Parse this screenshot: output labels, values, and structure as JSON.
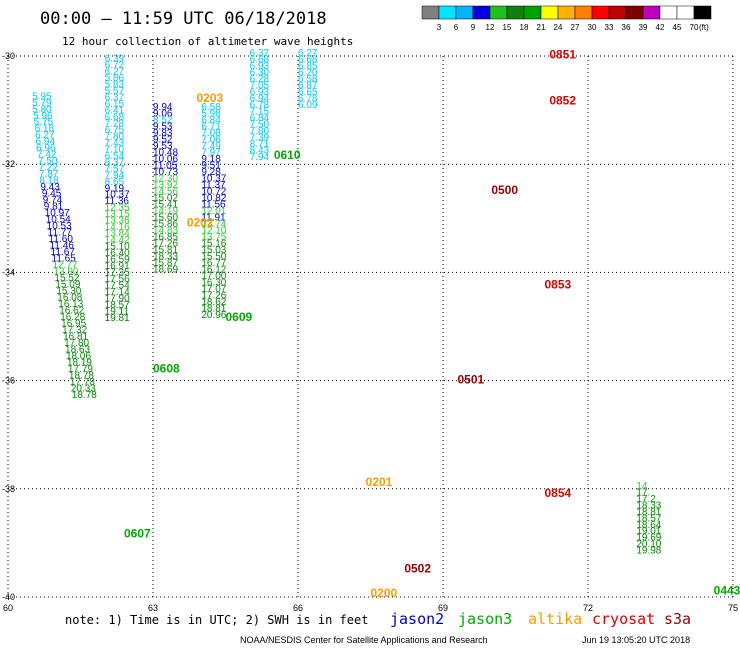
{
  "title": "00:00 – 11:59 UTC 06/18/2018",
  "subtitle": "12 hour collection of altimeter wave heights",
  "colorbar": {
    "labels": [
      "3",
      "6",
      "9",
      "12",
      "15",
      "18",
      "21",
      "24",
      "27",
      "30",
      "33",
      "36",
      "39",
      "42",
      "45",
      "70"
    ],
    "unit": "(ft)",
    "colors": [
      "#808080",
      "#00e5ff",
      "#00b4ff",
      "#0000e0",
      "#20c020",
      "#108010",
      "#00a000",
      "#ffff00",
      "#ffb000",
      "#ff8000",
      "#ff0000",
      "#c00000",
      "#800000",
      "#c000c0",
      "#ffffff",
      "#ffffff",
      "#000000"
    ]
  },
  "note": "note: 1) Time is in UTC; 2) SWH is in feet",
  "legend": [
    {
      "name": "jason2",
      "color": "#0000cc"
    },
    {
      "name": "jason3",
      "color": "#00aa00"
    },
    {
      "name": "altika",
      "color": "#ff9900"
    },
    {
      "name": "cryosat",
      "color": "#dd0000"
    },
    {
      "name": "s3a",
      "color": "#990000"
    }
  ],
  "footer_center": "NOAA/NESDIS Center for Satellite Applications and Research",
  "footer_right": "Jun 19 13:05:20 UTC 2018",
  "chart_data": {
    "type": "scatter",
    "xlim": [
      60,
      75
    ],
    "ylim": [
      -40,
      -30
    ],
    "xticks": [
      "60",
      "63",
      "66",
      "69",
      "72",
      "75"
    ],
    "yticks": [
      "-30",
      "-32",
      "-34",
      "-36",
      "-38",
      "-40"
    ],
    "grid": true,
    "points": [
      {
        "x": 60.5,
        "y": -30.8,
        "v": "5.95"
      },
      {
        "x": 60.5,
        "y": -30.92,
        "v": "5.79"
      },
      {
        "x": 60.5,
        "y": -31.04,
        "v": "5.80"
      },
      {
        "x": 60.52,
        "y": -31.16,
        "v": "5.96"
      },
      {
        "x": 60.53,
        "y": -31.28,
        "v": "5.75"
      },
      {
        "x": 60.55,
        "y": -31.4,
        "v": "6.18"
      },
      {
        "x": 60.56,
        "y": -31.52,
        "v": "6.27"
      },
      {
        "x": 60.57,
        "y": -31.64,
        "v": "6.94"
      },
      {
        "x": 60.58,
        "y": -31.76,
        "v": "6.96"
      },
      {
        "x": 60.6,
        "y": -31.88,
        "v": "7.42"
      },
      {
        "x": 60.62,
        "y": -32.0,
        "v": "7.50"
      },
      {
        "x": 60.63,
        "y": -32.12,
        "v": "7.22"
      },
      {
        "x": 60.64,
        "y": -32.24,
        "v": "7.87"
      },
      {
        "x": 60.65,
        "y": -32.36,
        "v": "8.18"
      },
      {
        "x": 60.67,
        "y": -32.48,
        "v": "9.43"
      },
      {
        "x": 60.7,
        "y": -32.6,
        "v": "9.45"
      },
      {
        "x": 60.72,
        "y": -32.72,
        "v": "9.74"
      },
      {
        "x": 60.74,
        "y": -32.84,
        "v": "9.81"
      },
      {
        "x": 60.76,
        "y": -32.96,
        "v": "10.97"
      },
      {
        "x": 60.78,
        "y": -33.08,
        "v": "10.54"
      },
      {
        "x": 60.8,
        "y": -33.2,
        "v": "10.53"
      },
      {
        "x": 60.82,
        "y": -33.32,
        "v": "11.77"
      },
      {
        "x": 60.84,
        "y": -33.44,
        "v": "11.60"
      },
      {
        "x": 60.86,
        "y": -33.56,
        "v": "11.46"
      },
      {
        "x": 60.88,
        "y": -33.68,
        "v": "11.67"
      },
      {
        "x": 60.9,
        "y": -33.8,
        "v": "11.65"
      },
      {
        "x": 60.92,
        "y": -33.92,
        "v": "12.77"
      },
      {
        "x": 60.94,
        "y": -34.04,
        "v": "13.90"
      },
      {
        "x": 60.96,
        "y": -34.16,
        "v": "15.52"
      },
      {
        "x": 60.98,
        "y": -34.28,
        "v": "15.09"
      },
      {
        "x": 61.0,
        "y": -34.4,
        "v": "15.30"
      },
      {
        "x": 61.02,
        "y": -34.52,
        "v": "16.08"
      },
      {
        "x": 61.04,
        "y": -34.64,
        "v": "16.13"
      },
      {
        "x": 61.06,
        "y": -34.76,
        "v": "16.62"
      },
      {
        "x": 61.08,
        "y": -34.88,
        "v": "16.28"
      },
      {
        "x": 61.1,
        "y": -35.0,
        "v": "16.95"
      },
      {
        "x": 61.12,
        "y": -35.12,
        "v": "17.32"
      },
      {
        "x": 61.14,
        "y": -35.24,
        "v": "16.81"
      },
      {
        "x": 61.16,
        "y": -35.36,
        "v": "17.80"
      },
      {
        "x": 61.18,
        "y": -35.48,
        "v": "18.63"
      },
      {
        "x": 61.2,
        "y": -35.6,
        "v": "18.06"
      },
      {
        "x": 61.22,
        "y": -35.72,
        "v": "18.19"
      },
      {
        "x": 61.24,
        "y": -35.84,
        "v": "17.79"
      },
      {
        "x": 61.26,
        "y": -35.96,
        "v": "18.78"
      },
      {
        "x": 61.28,
        "y": -36.08,
        "v": "17.78"
      },
      {
        "x": 61.3,
        "y": -36.2,
        "v": "20.33"
      },
      {
        "x": 61.32,
        "y": -36.32,
        "v": "18.78"
      },
      {
        "x": 62.0,
        "y": -30.1,
        "v": "6.39"
      },
      {
        "x": 62.0,
        "y": -30.22,
        "v": "6.72"
      },
      {
        "x": 62.0,
        "y": -30.34,
        "v": "6.27"
      },
      {
        "x": 62.0,
        "y": -30.46,
        "v": "5.86"
      },
      {
        "x": 62.0,
        "y": -30.58,
        "v": "5.83"
      },
      {
        "x": 62.0,
        "y": -30.7,
        "v": "5.57"
      },
      {
        "x": 62.0,
        "y": -30.82,
        "v": "6.37"
      },
      {
        "x": 62.0,
        "y": -30.94,
        "v": "6.15"
      },
      {
        "x": 62.0,
        "y": -31.06,
        "v": "6.41"
      },
      {
        "x": 62.0,
        "y": -31.18,
        "v": "6.68"
      },
      {
        "x": 62.0,
        "y": -31.3,
        "v": "7.28"
      },
      {
        "x": 62.0,
        "y": -31.42,
        "v": "6.75"
      },
      {
        "x": 62.0,
        "y": -31.54,
        "v": "7.80"
      },
      {
        "x": 62.0,
        "y": -31.66,
        "v": "7.43"
      },
      {
        "x": 62.0,
        "y": -31.78,
        "v": "7.10"
      },
      {
        "x": 62.0,
        "y": -31.9,
        "v": "6.54"
      },
      {
        "x": 62.0,
        "y": -32.02,
        "v": "8.37"
      },
      {
        "x": 62.0,
        "y": -32.14,
        "v": "7.57"
      },
      {
        "x": 62.0,
        "y": -32.26,
        "v": "7.94"
      },
      {
        "x": 62.0,
        "y": -32.38,
        "v": "8.65"
      },
      {
        "x": 62.0,
        "y": -32.5,
        "v": "9.19"
      },
      {
        "x": 62.0,
        "y": -32.62,
        "v": "10.37"
      },
      {
        "x": 62.0,
        "y": -32.74,
        "v": "11.36"
      },
      {
        "x": 62.0,
        "y": -32.86,
        "v": "12.35"
      },
      {
        "x": 62.0,
        "y": -32.98,
        "v": "13.15"
      },
      {
        "x": 62.0,
        "y": -33.1,
        "v": "13.36"
      },
      {
        "x": 62.0,
        "y": -33.22,
        "v": "14.16"
      },
      {
        "x": 62.0,
        "y": -33.34,
        "v": "13.84"
      },
      {
        "x": 62.0,
        "y": -33.46,
        "v": "14.42"
      },
      {
        "x": 62.0,
        "y": -33.58,
        "v": "15.10"
      },
      {
        "x": 62.0,
        "y": -33.7,
        "v": "16.40"
      },
      {
        "x": 62.0,
        "y": -33.82,
        "v": "16.59"
      },
      {
        "x": 62.0,
        "y": -33.94,
        "v": "16.91"
      },
      {
        "x": 62.0,
        "y": -34.06,
        "v": "17.35"
      },
      {
        "x": 62.0,
        "y": -34.18,
        "v": "17.56"
      },
      {
        "x": 62.0,
        "y": -34.3,
        "v": "17.54"
      },
      {
        "x": 62.0,
        "y": -34.42,
        "v": "17.14"
      },
      {
        "x": 62.0,
        "y": -34.54,
        "v": "17.90"
      },
      {
        "x": 62.0,
        "y": -34.66,
        "v": "18.57"
      },
      {
        "x": 62.0,
        "y": -34.78,
        "v": "19.11"
      },
      {
        "x": 62.0,
        "y": -34.9,
        "v": "19.81"
      },
      {
        "x": 63.0,
        "y": -31.0,
        "v": "9.94"
      },
      {
        "x": 63.0,
        "y": -31.12,
        "v": "9.06"
      },
      {
        "x": 63.0,
        "y": -31.24,
        "v": "8.52"
      },
      {
        "x": 63.0,
        "y": -31.36,
        "v": "9.53"
      },
      {
        "x": 63.0,
        "y": -31.48,
        "v": "9.83"
      },
      {
        "x": 63.0,
        "y": -31.6,
        "v": "9.52"
      },
      {
        "x": 63.0,
        "y": -31.72,
        "v": "9.53"
      },
      {
        "x": 63.0,
        "y": -31.84,
        "v": "10.48"
      },
      {
        "x": 63.0,
        "y": -31.96,
        "v": "10.06"
      },
      {
        "x": 63.0,
        "y": -32.08,
        "v": "11.05"
      },
      {
        "x": 63.0,
        "y": -32.2,
        "v": "10.73"
      },
      {
        "x": 63.0,
        "y": -32.32,
        "v": "12.30"
      },
      {
        "x": 63.0,
        "y": -32.44,
        "v": "13.92"
      },
      {
        "x": 63.0,
        "y": -32.56,
        "v": "14.56"
      },
      {
        "x": 63.0,
        "y": -32.68,
        "v": "15.02"
      },
      {
        "x": 63.0,
        "y": -32.8,
        "v": "15.41"
      },
      {
        "x": 63.0,
        "y": -32.92,
        "v": "14.19"
      },
      {
        "x": 63.0,
        "y": -33.04,
        "v": "15.60"
      },
      {
        "x": 63.0,
        "y": -33.16,
        "v": "15.86"
      },
      {
        "x": 63.0,
        "y": -33.28,
        "v": "14.83"
      },
      {
        "x": 63.0,
        "y": -33.4,
        "v": "16.85"
      },
      {
        "x": 63.0,
        "y": -33.52,
        "v": "17.26"
      },
      {
        "x": 63.0,
        "y": -33.64,
        "v": "15.81"
      },
      {
        "x": 63.0,
        "y": -33.76,
        "v": "18.33"
      },
      {
        "x": 63.0,
        "y": -33.88,
        "v": "15.87"
      },
      {
        "x": 63.0,
        "y": -34.0,
        "v": "18.69"
      },
      {
        "x": 64.0,
        "y": -31.0,
        "v": "6.58"
      },
      {
        "x": 64.0,
        "y": -31.12,
        "v": "5.98"
      },
      {
        "x": 64.0,
        "y": -31.24,
        "v": "6.84"
      },
      {
        "x": 64.0,
        "y": -31.36,
        "v": "6.71"
      },
      {
        "x": 64.0,
        "y": -31.48,
        "v": "7.08"
      },
      {
        "x": 64.0,
        "y": -31.6,
        "v": "7.06"
      },
      {
        "x": 64.0,
        "y": -31.72,
        "v": "7.49"
      },
      {
        "x": 64.0,
        "y": -31.84,
        "v": "7.97"
      },
      {
        "x": 64.0,
        "y": -31.96,
        "v": "9.18"
      },
      {
        "x": 64.0,
        "y": -32.08,
        "v": "9.51"
      },
      {
        "x": 64.0,
        "y": -32.2,
        "v": "9.28"
      },
      {
        "x": 64.0,
        "y": -32.32,
        "v": "10.37"
      },
      {
        "x": 64.0,
        "y": -32.44,
        "v": "11.37"
      },
      {
        "x": 64.0,
        "y": -32.56,
        "v": "10.72"
      },
      {
        "x": 64.0,
        "y": -32.68,
        "v": "10.82"
      },
      {
        "x": 64.0,
        "y": -32.8,
        "v": "11.56"
      },
      {
        "x": 64.0,
        "y": -32.92,
        "v": "12.01"
      },
      {
        "x": 64.0,
        "y": -33.04,
        "v": "11.91"
      },
      {
        "x": 64.0,
        "y": -33.16,
        "v": "13.74"
      },
      {
        "x": 64.0,
        "y": -33.28,
        "v": "12.10"
      },
      {
        "x": 64.0,
        "y": -33.4,
        "v": "13.75"
      },
      {
        "x": 64.0,
        "y": -33.52,
        "v": "15.16"
      },
      {
        "x": 64.0,
        "y": -33.64,
        "v": "15.03"
      },
      {
        "x": 64.0,
        "y": -33.76,
        "v": "15.50"
      },
      {
        "x": 64.0,
        "y": -33.88,
        "v": "16.77"
      },
      {
        "x": 64.0,
        "y": -34.0,
        "v": "16.12"
      },
      {
        "x": 64.0,
        "y": -34.12,
        "v": "17.00"
      },
      {
        "x": 64.0,
        "y": -34.24,
        "v": "16.30"
      },
      {
        "x": 64.0,
        "y": -34.36,
        "v": "17.07"
      },
      {
        "x": 64.0,
        "y": -34.48,
        "v": "17.26"
      },
      {
        "x": 64.0,
        "y": -34.6,
        "v": "18.62"
      },
      {
        "x": 64.0,
        "y": -34.72,
        "v": "18.81"
      },
      {
        "x": 64.0,
        "y": -34.84,
        "v": "20.96"
      },
      {
        "x": 65.0,
        "y": -30.0,
        "v": "6.37"
      },
      {
        "x": 65.0,
        "y": -30.12,
        "v": "6.68"
      },
      {
        "x": 65.0,
        "y": -30.24,
        "v": "6.93"
      },
      {
        "x": 65.0,
        "y": -30.36,
        "v": "6.30"
      },
      {
        "x": 65.0,
        "y": -30.48,
        "v": "6.28"
      },
      {
        "x": 65.0,
        "y": -30.6,
        "v": "7.05"
      },
      {
        "x": 65.0,
        "y": -30.72,
        "v": "6.93"
      },
      {
        "x": 65.0,
        "y": -30.84,
        "v": "6.94"
      },
      {
        "x": 65.0,
        "y": -30.96,
        "v": "6.78"
      },
      {
        "x": 65.0,
        "y": -31.08,
        "v": "7.15"
      },
      {
        "x": 65.0,
        "y": -31.2,
        "v": "6.84"
      },
      {
        "x": 65.0,
        "y": -31.32,
        "v": "7.50"
      },
      {
        "x": 65.0,
        "y": -31.44,
        "v": "7.80"
      },
      {
        "x": 65.0,
        "y": -31.56,
        "v": "7.39"
      },
      {
        "x": 65.0,
        "y": -31.68,
        "v": "8.71"
      },
      {
        "x": 65.0,
        "y": -31.8,
        "v": "8.43"
      },
      {
        "x": 65.0,
        "y": -31.92,
        "v": "7.94"
      },
      {
        "x": 66.0,
        "y": -30.0,
        "v": "6.27"
      },
      {
        "x": 66.0,
        "y": -30.12,
        "v": "6.68"
      },
      {
        "x": 66.0,
        "y": -30.24,
        "v": "6.85"
      },
      {
        "x": 66.0,
        "y": -30.36,
        "v": "6.20"
      },
      {
        "x": 66.0,
        "y": -30.48,
        "v": "6.58"
      },
      {
        "x": 66.0,
        "y": -30.6,
        "v": "6.87"
      },
      {
        "x": 66.0,
        "y": -30.72,
        "v": "6.65"
      },
      {
        "x": 66.0,
        "y": -30.84,
        "v": "6.78"
      },
      {
        "x": 66.0,
        "y": -30.96,
        "v": "6.09"
      },
      {
        "x": 73.0,
        "y": -38.0,
        "v": "14"
      },
      {
        "x": 73.0,
        "y": -38.12,
        "v": "17."
      },
      {
        "x": 73.0,
        "y": -38.24,
        "v": "17.2"
      },
      {
        "x": 73.0,
        "y": -38.36,
        "v": "18.33"
      },
      {
        "x": 73.0,
        "y": -38.48,
        "v": "18.81"
      },
      {
        "x": 73.0,
        "y": -38.6,
        "v": "18.57"
      },
      {
        "x": 73.0,
        "y": -38.72,
        "v": "18.64"
      },
      {
        "x": 73.0,
        "y": -38.84,
        "v": "19.01"
      },
      {
        "x": 73.0,
        "y": -38.96,
        "v": "19.69"
      },
      {
        "x": 73.0,
        "y": -39.08,
        "v": "20.10"
      },
      {
        "x": 73.0,
        "y": -39.2,
        "v": "19.98"
      }
    ],
    "times": [
      {
        "label": "0203",
        "sat": "altika"
      },
      {
        "label": "0610",
        "sat": "jason3"
      },
      {
        "label": "0202",
        "sat": "altika"
      },
      {
        "label": "0609",
        "sat": "jason3"
      },
      {
        "label": "0608",
        "sat": "jason3"
      },
      {
        "label": "0607",
        "sat": "jason3"
      },
      {
        "label": "0201",
        "sat": "altika"
      },
      {
        "label": "0200",
        "sat": "altika"
      },
      {
        "label": "0502",
        "sat": "s3a"
      },
      {
        "label": "0501",
        "sat": "s3a"
      },
      {
        "label": "0500",
        "sat": "s3a"
      },
      {
        "label": "0851",
        "sat": "cryosat"
      },
      {
        "label": "0852",
        "sat": "cryosat"
      },
      {
        "label": "0853",
        "sat": "cryosat"
      },
      {
        "label": "0854",
        "sat": "cryosat"
      },
      {
        "label": "0443",
        "sat": "jason3"
      }
    ]
  }
}
